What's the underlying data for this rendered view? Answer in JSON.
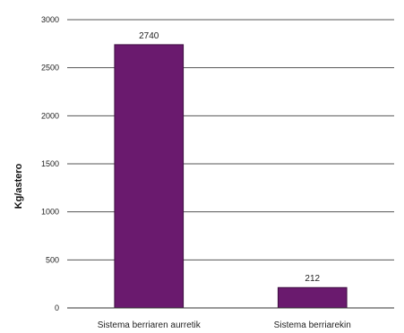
{
  "chart_data": {
    "type": "bar",
    "categories": [
      "Sistema berriaren aurretik",
      "Sistema berriarekin"
    ],
    "values": [
      2740,
      212
    ],
    "data_labels": [
      "2740",
      "212"
    ],
    "ylabel": "Kg/astero",
    "ylim": [
      0,
      3000
    ],
    "yticks": [
      0,
      500,
      1000,
      1500,
      2000,
      2500,
      3000
    ],
    "grid": true,
    "legend": "none",
    "colors": {
      "bar": "#6a1a6e",
      "bar_edge": "#3d0d40",
      "grid": "#555555",
      "axis": "#333333"
    }
  }
}
